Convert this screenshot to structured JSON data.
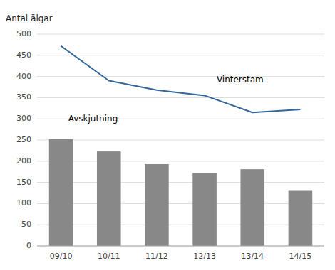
{
  "chart_data": {
    "type": "bar",
    "ylabel": "Antal älgar",
    "categories": [
      "09/10",
      "10/11",
      "11/12",
      "12/13",
      "13/14",
      "14/15"
    ],
    "series": [
      {
        "type": "bar",
        "color": "#888888",
        "values": [
          252,
          223,
          193,
          172,
          181,
          130
        ]
      },
      {
        "type": "line",
        "color": "#336699",
        "values": [
          472,
          390,
          368,
          355,
          315,
          322
        ]
      }
    ],
    "annotations": [
      "Vinterstam",
      "Avskjutning"
    ],
    "ylim": [
      0,
      500
    ],
    "yticks": [
      0,
      50,
      100,
      150,
      200,
      250,
      300,
      350,
      400,
      450,
      500
    ],
    "grid": true
  }
}
